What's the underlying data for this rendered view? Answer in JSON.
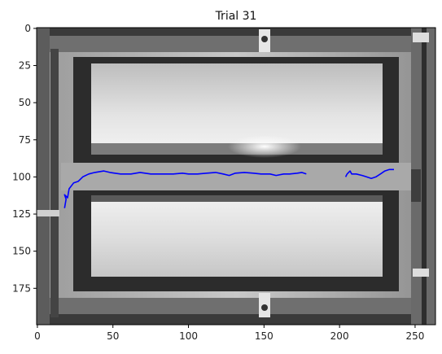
{
  "chart_data": {
    "type": "line",
    "title": "Trial 31",
    "xlabel": "",
    "ylabel": "",
    "xlim": [
      -0.5,
      263.5
    ],
    "ylim": [
      199.5,
      -0.5
    ],
    "x_ticks": [
      0,
      50,
      100,
      150,
      200,
      250
    ],
    "y_ticks": [
      0,
      25,
      50,
      75,
      100,
      125,
      150,
      175
    ],
    "grid": false,
    "background": "grayscale camera frame of a fish-tank apparatus",
    "series": [
      {
        "name": "trajectory",
        "color": "#0000ff",
        "segments": [
          [
            [
              18,
              121
            ],
            [
              19,
              115
            ],
            [
              18,
              112
            ],
            [
              20,
              114
            ],
            [
              21,
              108
            ],
            [
              24,
              104
            ],
            [
              27,
              103
            ],
            [
              30,
              100
            ],
            [
              34,
              98
            ],
            [
              38,
              97
            ],
            [
              44,
              96
            ],
            [
              48,
              97
            ],
            [
              55,
              98
            ],
            [
              62,
              98
            ],
            [
              68,
              97
            ],
            [
              75,
              98
            ],
            [
              82,
              98
            ],
            [
              90,
              98
            ],
            [
              96,
              97.5
            ],
            [
              100,
              98
            ],
            [
              106,
              98
            ],
            [
              112,
              97.5
            ],
            [
              118,
              97
            ],
            [
              123,
              98
            ],
            [
              127,
              99
            ],
            [
              131,
              97.5
            ],
            [
              137,
              97
            ],
            [
              143,
              97.5
            ],
            [
              148,
              98
            ],
            [
              154,
              98
            ],
            [
              158,
              99
            ],
            [
              163,
              98
            ],
            [
              167,
              98
            ],
            [
              172,
              97.5
            ],
            [
              175,
              97
            ],
            [
              178,
              98
            ]
          ],
          [
            [
              204,
              100
            ],
            [
              205,
              98
            ],
            [
              207,
              96
            ],
            [
              208,
              98
            ],
            [
              211,
              98
            ],
            [
              215,
              99
            ],
            [
              218,
              100
            ],
            [
              221,
              101
            ],
            [
              224,
              100
            ],
            [
              227,
              98
            ],
            [
              230,
              96
            ],
            [
              233,
              95
            ],
            [
              236,
              95
            ]
          ]
        ]
      }
    ]
  }
}
